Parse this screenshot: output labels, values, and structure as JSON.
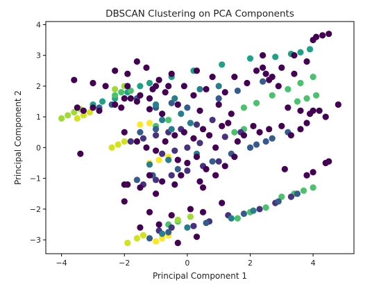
{
  "chart_data": {
    "type": "scatter",
    "title": "DBSCAN Clustering on PCA Components",
    "xlabel": "Principal Component 1",
    "ylabel": "Principal Component 2",
    "xlim": [
      -4.5,
      5.3
    ],
    "ylim": [
      -3.45,
      4.1
    ],
    "xticks": [
      -4,
      -2,
      0,
      2,
      4
    ],
    "yticks": [
      -3,
      -2,
      -1,
      0,
      1,
      2,
      3,
      4
    ],
    "grid": false,
    "legend": "none",
    "colormap": "viridis",
    "colors": {
      "noise": "#440154",
      "c1": "#46327e",
      "c2": "#365c8d",
      "c3": "#277f8e",
      "c4": "#1fa187",
      "c5": "#4ac16d",
      "c6": "#a0da39",
      "c7": "#d2e21b",
      "c8": "#fde725"
    },
    "series": [
      {
        "cluster": "c4",
        "color": "#1fa187",
        "points": [
          [
            -3.0,
            1.4
          ],
          [
            -2.7,
            1.5
          ],
          [
            -2.3,
            1.6
          ],
          [
            -1.9,
            1.8
          ],
          [
            -1.5,
            2.0
          ],
          [
            -1.2,
            2.1
          ],
          [
            -0.5,
            2.3
          ],
          [
            0.2,
            2.5
          ],
          [
            1.1,
            2.7
          ],
          [
            2.0,
            2.9
          ],
          [
            2.8,
            2.95
          ],
          [
            3.3,
            3.05
          ],
          [
            3.6,
            3.1
          ],
          [
            3.9,
            3.2
          ]
        ]
      },
      {
        "cluster": "c5",
        "color": "#4ac16d",
        "points": [
          [
            -2.3,
            1.7
          ],
          [
            -2.1,
            1.8
          ],
          [
            -1.8,
            1.85
          ],
          [
            1.8,
            1.3
          ],
          [
            2.2,
            1.45
          ],
          [
            2.7,
            1.7
          ],
          [
            3.2,
            1.9
          ],
          [
            3.6,
            2.1
          ],
          [
            4.0,
            2.3
          ],
          [
            3.5,
            1.5
          ],
          [
            3.8,
            1.6
          ],
          [
            4.1,
            1.7
          ],
          [
            1.5,
            0.5
          ],
          [
            1.8,
            0.6
          ],
          [
            -1.0,
            0.7
          ],
          [
            -0.6,
            0.9
          ],
          [
            1.6,
            -2.3
          ],
          [
            2.0,
            -2.1
          ],
          [
            2.5,
            -1.95
          ],
          [
            -0.6,
            -2.5
          ],
          [
            -0.3,
            -2.4
          ],
          [
            3.0,
            -1.6
          ],
          [
            3.4,
            -1.5
          ],
          [
            3.7,
            -1.4
          ],
          [
            4.0,
            -1.3
          ]
        ]
      },
      {
        "cluster": "c6",
        "color": "#a0da39",
        "points": [
          [
            -4.0,
            0.95
          ],
          [
            -3.8,
            1.05
          ],
          [
            -3.6,
            1.15
          ],
          [
            -3.4,
            1.25
          ],
          [
            -2.3,
            1.9
          ],
          [
            -2.0,
            2.0
          ],
          [
            -0.3,
            -2.35
          ],
          [
            0.1,
            -2.25
          ]
        ]
      },
      {
        "cluster": "c7",
        "color": "#d2e21b",
        "points": [
          [
            -3.5,
            0.95
          ],
          [
            -3.3,
            1.05
          ],
          [
            -3.1,
            1.15
          ],
          [
            -2.4,
            0.0
          ],
          [
            -2.2,
            0.1
          ],
          [
            -2.0,
            0.2
          ],
          [
            -1.9,
            -3.1
          ],
          [
            -1.6,
            -2.95
          ],
          [
            -1.4,
            -2.85
          ]
        ]
      },
      {
        "cluster": "c8",
        "color": "#fde725",
        "points": [
          [
            -1.0,
            -3.05
          ],
          [
            -0.8,
            -2.95
          ],
          [
            -0.6,
            -2.85
          ],
          [
            -1.2,
            -0.5
          ],
          [
            -0.9,
            -0.4
          ],
          [
            -0.6,
            -0.3
          ],
          [
            -1.5,
            0.75
          ],
          [
            -1.2,
            0.8
          ]
        ]
      },
      {
        "cluster": "c1",
        "color": "#46327e",
        "points": [
          [
            -1.8,
            0.2
          ],
          [
            -1.4,
            0.3
          ],
          [
            -1.0,
            0.4
          ],
          [
            -0.6,
            0.5
          ],
          [
            -0.2,
            0.6
          ],
          [
            0.3,
            0.75
          ],
          [
            0.8,
            0.9
          ],
          [
            -0.8,
            -0.2
          ],
          [
            -0.4,
            -0.1
          ],
          [
            0.0,
            0.0
          ],
          [
            0.4,
            0.15
          ],
          [
            1.2,
            0.35
          ],
          [
            1.7,
            0.5
          ],
          [
            -1.4,
            -1.2
          ],
          [
            -1.0,
            -1.05
          ],
          [
            -0.5,
            -0.9
          ],
          [
            0.0,
            -0.75
          ],
          [
            0.5,
            -0.6
          ],
          [
            1.0,
            -0.45
          ],
          [
            -0.9,
            -2.7
          ],
          [
            -0.5,
            -2.6
          ],
          [
            0.2,
            -2.55
          ],
          [
            0.7,
            -2.4
          ],
          [
            1.3,
            -2.2
          ],
          [
            2.3,
            -2.0
          ],
          [
            2.8,
            -1.8
          ],
          [
            3.3,
            -1.6
          ]
        ]
      },
      {
        "cluster": "c2",
        "color": "#365c8d",
        "points": [
          [
            -2.8,
            1.3
          ],
          [
            -2.4,
            1.4
          ],
          [
            -1.6,
            1.6
          ],
          [
            -1.0,
            1.3
          ],
          [
            -0.5,
            1.45
          ],
          [
            0.0,
            1.3
          ],
          [
            1.0,
            1.6
          ],
          [
            1.6,
            1.85
          ],
          [
            2.4,
            2.15
          ],
          [
            -1.5,
            0.5
          ],
          [
            -1.0,
            0.6
          ],
          [
            2.2,
            0.1
          ],
          [
            2.7,
            0.3
          ],
          [
            3.2,
            0.5
          ],
          [
            -1.6,
            -1.05
          ],
          [
            -1.1,
            -0.9
          ],
          [
            -0.3,
            -0.7
          ],
          [
            0.8,
            -0.45
          ],
          [
            1.4,
            -0.2
          ],
          [
            2.0,
            0.0
          ],
          [
            2.5,
            0.2
          ],
          [
            -1.2,
            -2.95
          ],
          [
            -0.6,
            -2.75
          ],
          [
            0.6,
            -2.45
          ],
          [
            1.8,
            -2.15
          ],
          [
            2.9,
            -1.75
          ],
          [
            3.5,
            -1.5
          ]
        ]
      },
      {
        "cluster": "c3",
        "color": "#277f8e",
        "points": [
          [
            -1.0,
            1.4
          ],
          [
            -0.4,
            1.6
          ],
          [
            0.4,
            1.9
          ],
          [
            1.0,
            2.0
          ],
          [
            -0.8,
            0.9
          ],
          [
            -0.2,
            1.1
          ],
          [
            -0.5,
            0.6
          ],
          [
            0.1,
            0.8
          ],
          [
            -1.2,
            -0.55
          ],
          [
            -0.6,
            -0.4
          ],
          [
            0.3,
            -0.2
          ],
          [
            1.4,
            -2.3
          ],
          [
            2.1,
            -2.05
          ],
          [
            -0.8,
            -2.8
          ],
          [
            0.0,
            -2.6
          ]
        ]
      },
      {
        "cluster": "noise",
        "color": "#440154",
        "points": [
          [
            -3.5,
            1.3
          ],
          [
            -3.3,
            1.2
          ],
          [
            -3.4,
            -0.2
          ],
          [
            -3.0,
            1.3
          ],
          [
            -2.8,
            1.2
          ],
          [
            -2.3,
            1.4
          ],
          [
            -2.1,
            1.3
          ],
          [
            -2.0,
            1.6
          ],
          [
            -1.9,
            2.0
          ],
          [
            -1.8,
            1.6
          ],
          [
            -1.6,
            1.5
          ],
          [
            -1.5,
            1.7
          ],
          [
            -1.3,
            2.6
          ],
          [
            -1.2,
            1.6
          ],
          [
            -1.2,
            1.25
          ],
          [
            -1.1,
            1.9
          ],
          [
            -1.0,
            2.0
          ],
          [
            -0.9,
            2.2
          ],
          [
            -0.8,
            1.1
          ],
          [
            -0.7,
            1.8
          ],
          [
            -0.6,
            2.0
          ],
          [
            -0.5,
            2.4
          ],
          [
            -0.3,
            1.4
          ],
          [
            -0.1,
            2.0
          ],
          [
            0.2,
            1.7
          ],
          [
            0.3,
            2.5
          ],
          [
            0.4,
            1.2
          ],
          [
            0.6,
            1.9
          ],
          [
            0.8,
            2.3
          ],
          [
            1.0,
            1.4
          ],
          [
            1.2,
            1.8
          ],
          [
            1.4,
            1.1
          ],
          [
            1.5,
            2.3
          ],
          [
            1.9,
            2.1
          ],
          [
            2.2,
            2.5
          ],
          [
            2.4,
            2.6
          ],
          [
            2.5,
            2.4
          ],
          [
            2.6,
            2.2
          ],
          [
            2.7,
            2.3
          ],
          [
            2.9,
            2.0
          ],
          [
            3.0,
            2.6
          ],
          [
            3.2,
            1.3
          ],
          [
            3.4,
            2.4
          ],
          [
            3.6,
            1.2
          ],
          [
            3.9,
            1.1
          ],
          [
            4.0,
            1.2
          ],
          [
            4.2,
            1.2
          ],
          [
            4.4,
            1.0
          ],
          [
            4.8,
            1.4
          ],
          [
            4.0,
            3.5
          ],
          [
            4.1,
            3.6
          ],
          [
            4.3,
            3.65
          ],
          [
            4.5,
            3.7
          ],
          [
            -1.6,
            2.8
          ],
          [
            -2.3,
            2.5
          ],
          [
            -1.9,
            2.4
          ],
          [
            -2.6,
            2.0
          ],
          [
            -3.6,
            2.2
          ],
          [
            -3.0,
            2.1
          ],
          [
            2.4,
            3.0
          ],
          [
            3.4,
            3.0
          ],
          [
            3.8,
            2.8
          ],
          [
            -2.0,
            0.5
          ],
          [
            -1.6,
            0.2
          ],
          [
            -1.3,
            0.0
          ],
          [
            -1.0,
            -0.1
          ],
          [
            -0.7,
            0.2
          ],
          [
            -0.4,
            0.4
          ],
          [
            -0.1,
            0.5
          ],
          [
            0.2,
            0.3
          ],
          [
            0.5,
            0.6
          ],
          [
            0.7,
            0.4
          ],
          [
            0.9,
            0.0
          ],
          [
            1.1,
            0.7
          ],
          [
            1.3,
            0.8
          ],
          [
            1.6,
            0.2
          ],
          [
            1.8,
            0.4
          ],
          [
            2.1,
            0.7
          ],
          [
            2.3,
            0.5
          ],
          [
            2.6,
            0.6
          ],
          [
            3.0,
            0.7
          ],
          [
            3.3,
            0.4
          ],
          [
            3.6,
            0.6
          ],
          [
            3.8,
            0.8
          ],
          [
            -0.3,
            -0.4
          ],
          [
            0.0,
            -0.5
          ],
          [
            0.3,
            -0.3
          ],
          [
            0.6,
            -0.7
          ],
          [
            0.9,
            -0.9
          ],
          [
            1.2,
            -0.6
          ],
          [
            1.5,
            -0.3
          ],
          [
            -1.9,
            -1.2
          ],
          [
            -1.5,
            -1.3
          ],
          [
            -1.2,
            -0.9
          ],
          [
            -0.8,
            -1.1
          ],
          [
            -0.4,
            -1.2
          ],
          [
            -0.2,
            -0.9
          ],
          [
            0.4,
            -1.1
          ],
          [
            0.5,
            -1.3
          ],
          [
            -2.0,
            -1.75
          ],
          [
            -2.0,
            -1.2
          ],
          [
            -1.0,
            -1.5
          ],
          [
            3.8,
            -0.9
          ],
          [
            4.0,
            -0.8
          ],
          [
            4.4,
            -0.5
          ],
          [
            4.5,
            -0.45
          ],
          [
            3.1,
            -0.7
          ],
          [
            -1.2,
            -2.1
          ],
          [
            -0.5,
            -2.2
          ],
          [
            0.1,
            -2.0
          ],
          [
            0.5,
            -2.1
          ],
          [
            1.1,
            -1.8
          ],
          [
            -0.3,
            -3.1
          ],
          [
            0.3,
            -2.9
          ],
          [
            -0.9,
            -2.5
          ],
          [
            -1.5,
            -2.6
          ]
        ]
      }
    ]
  }
}
